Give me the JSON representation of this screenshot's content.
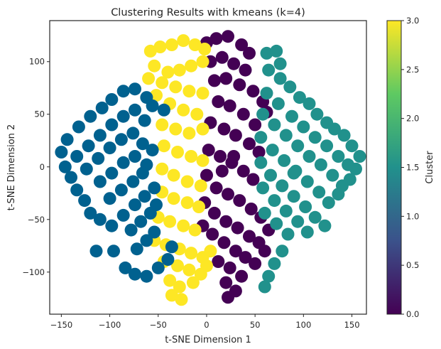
{
  "chart_data": {
    "type": "scatter",
    "title": "Clustering Results with kmeans (k=4)",
    "xlabel": "t-SNE Dimension 1",
    "ylabel": "t-SNE Dimension 2",
    "xlim": [
      -162,
      165
    ],
    "ylim": [
      -140,
      139
    ],
    "xticks": [
      -150,
      -100,
      -50,
      0,
      50,
      100,
      150
    ],
    "xtick_labels": [
      "−150",
      "−100",
      "−50",
      "0",
      "50",
      "100",
      "150"
    ],
    "yticks": [
      -100,
      -50,
      0,
      50,
      100
    ],
    "ytick_labels": [
      "−100",
      "−50",
      "0",
      "50",
      "100"
    ],
    "grid": false,
    "colormap": "viridis",
    "colorbar": {
      "label": "Cluster",
      "range": [
        0.0,
        3.0
      ],
      "ticks": [
        0.0,
        0.5,
        1.0,
        1.5,
        2.0,
        2.5,
        3.0
      ],
      "tick_labels": [
        "0.0",
        "0.5",
        "1.0",
        "1.5",
        "2.0",
        "2.5",
        "3.0"
      ],
      "stops": [
        "#440154",
        "#3b528b",
        "#21918c",
        "#5ec962",
        "#fde725"
      ]
    },
    "series": [
      {
        "cluster": 0,
        "color": "#440154",
        "points": [
          [
            0,
            118
          ],
          [
            10,
            122
          ],
          [
            22,
            124
          ],
          [
            36,
            116
          ],
          [
            44,
            108
          ],
          [
            4,
            100
          ],
          [
            16,
            104
          ],
          [
            28,
            98
          ],
          [
            40,
            92
          ],
          [
            8,
            82
          ],
          [
            20,
            84
          ],
          [
            34,
            78
          ],
          [
            48,
            72
          ],
          [
            58,
            62
          ],
          [
            62,
            52
          ],
          [
            12,
            62
          ],
          [
            24,
            58
          ],
          [
            38,
            50
          ],
          [
            50,
            40
          ],
          [
            4,
            42
          ],
          [
            18,
            36
          ],
          [
            30,
            30
          ],
          [
            44,
            22
          ],
          [
            54,
            14
          ],
          [
            2,
            16
          ],
          [
            14,
            10
          ],
          [
            26,
            4
          ],
          [
            38,
            -4
          ],
          [
            48,
            -12
          ],
          [
            0,
            -8
          ],
          [
            10,
            -20
          ],
          [
            22,
            -26
          ],
          [
            34,
            -32
          ],
          [
            46,
            -40
          ],
          [
            56,
            -48
          ],
          [
            64,
            -60
          ],
          [
            -2,
            -34
          ],
          [
            8,
            -44
          ],
          [
            20,
            -52
          ],
          [
            32,
            -58
          ],
          [
            44,
            -66
          ],
          [
            54,
            -72
          ],
          [
            -4,
            -56
          ],
          [
            6,
            -64
          ],
          [
            18,
            -72
          ],
          [
            30,
            -80
          ],
          [
            40,
            -86
          ],
          [
            50,
            -92
          ],
          [
            12,
            -90
          ],
          [
            24,
            -96
          ],
          [
            36,
            -104
          ],
          [
            20,
            -110
          ],
          [
            30,
            -118
          ],
          [
            22,
            -124
          ],
          [
            60,
            -80
          ],
          [
            28,
            10
          ],
          [
            16,
            -4
          ]
        ]
      },
      {
        "cluster": 1,
        "color": "#21918c",
        "points": [
          [
            62,
            108
          ],
          [
            72,
            110
          ],
          [
            76,
            98
          ],
          [
            64,
            92
          ],
          [
            76,
            84
          ],
          [
            86,
            76
          ],
          [
            96,
            66
          ],
          [
            106,
            60
          ],
          [
            114,
            50
          ],
          [
            124,
            42
          ],
          [
            132,
            36
          ],
          [
            142,
            30
          ],
          [
            150,
            20
          ],
          [
            158,
            10
          ],
          [
            154,
            -2
          ],
          [
            148,
            -12
          ],
          [
            62,
            70
          ],
          [
            74,
            60
          ],
          [
            88,
            48
          ],
          [
            100,
            38
          ],
          [
            112,
            28
          ],
          [
            124,
            20
          ],
          [
            136,
            10
          ],
          [
            146,
            2
          ],
          [
            58,
            50
          ],
          [
            70,
            40
          ],
          [
            82,
            30
          ],
          [
            94,
            20
          ],
          [
            106,
            10
          ],
          [
            118,
            2
          ],
          [
            130,
            -8
          ],
          [
            140,
            -18
          ],
          [
            56,
            28
          ],
          [
            68,
            16
          ],
          [
            80,
            6
          ],
          [
            92,
            -4
          ],
          [
            104,
            -14
          ],
          [
            116,
            -24
          ],
          [
            126,
            -34
          ],
          [
            56,
            4
          ],
          [
            66,
            -8
          ],
          [
            78,
            -18
          ],
          [
            90,
            -28
          ],
          [
            102,
            -38
          ],
          [
            112,
            -48
          ],
          [
            122,
            -56
          ],
          [
            58,
            -20
          ],
          [
            70,
            -32
          ],
          [
            82,
            -42
          ],
          [
            94,
            -52
          ],
          [
            104,
            -62
          ],
          [
            60,
            -44
          ],
          [
            72,
            -54
          ],
          [
            84,
            -64
          ],
          [
            78,
            -80
          ],
          [
            70,
            -92
          ],
          [
            64,
            -104
          ],
          [
            60,
            -114
          ],
          [
            90,
            -6
          ],
          [
            136,
            -26
          ]
        ]
      },
      {
        "cluster": 2,
        "color": "#fde725",
        "points": [
          [
            -58,
            110
          ],
          [
            -48,
            114
          ],
          [
            -36,
            116
          ],
          [
            -24,
            120
          ],
          [
            -12,
            116
          ],
          [
            -2,
            112
          ],
          [
            -4,
            100
          ],
          [
            -16,
            96
          ],
          [
            -28,
            92
          ],
          [
            -40,
            90
          ],
          [
            -54,
            96
          ],
          [
            -60,
            84
          ],
          [
            -46,
            80
          ],
          [
            -32,
            76
          ],
          [
            -18,
            72
          ],
          [
            -4,
            70
          ],
          [
            -52,
            68
          ],
          [
            -38,
            60
          ],
          [
            -24,
            54
          ],
          [
            -10,
            50
          ],
          [
            -4,
            36
          ],
          [
            -18,
            32
          ],
          [
            -32,
            36
          ],
          [
            -46,
            40
          ],
          [
            -44,
            20
          ],
          [
            -30,
            14
          ],
          [
            -16,
            10
          ],
          [
            -4,
            6
          ],
          [
            -46,
            -2
          ],
          [
            -34,
            -8
          ],
          [
            -20,
            -14
          ],
          [
            -6,
            -18
          ],
          [
            -46,
            -24
          ],
          [
            -34,
            -30
          ],
          [
            -20,
            -34
          ],
          [
            -8,
            -38
          ],
          [
            -50,
            -48
          ],
          [
            -38,
            -52
          ],
          [
            -24,
            -56
          ],
          [
            -12,
            -60
          ],
          [
            -54,
            -70
          ],
          [
            -42,
            -74
          ],
          [
            -28,
            -78
          ],
          [
            -16,
            -82
          ],
          [
            -4,
            -86
          ],
          [
            -44,
            -90
          ],
          [
            -30,
            -94
          ],
          [
            -18,
            -98
          ],
          [
            -38,
            -108
          ],
          [
            -28,
            -114
          ],
          [
            -36,
            -122
          ],
          [
            -26,
            -126
          ],
          [
            -14,
            -110
          ],
          [
            -6,
            -102
          ],
          [
            0,
            -94
          ],
          [
            4,
            -80
          ]
        ]
      },
      {
        "cluster": 3,
        "color": "#00618f",
        "points": [
          [
            -150,
            14
          ],
          [
            -146,
            0
          ],
          [
            -140,
            -10
          ],
          [
            -134,
            -22
          ],
          [
            -126,
            -32
          ],
          [
            -144,
            26
          ],
          [
            -132,
            38
          ],
          [
            -120,
            48
          ],
          [
            -108,
            56
          ],
          [
            -98,
            64
          ],
          [
            -86,
            72
          ],
          [
            -74,
            74
          ],
          [
            -62,
            66
          ],
          [
            -134,
            10
          ],
          [
            -122,
            20
          ],
          [
            -110,
            30
          ],
          [
            -98,
            40
          ],
          [
            -86,
            48
          ],
          [
            -74,
            54
          ],
          [
            -64,
            44
          ],
          [
            -124,
            -2
          ],
          [
            -112,
            8
          ],
          [
            -100,
            18
          ],
          [
            -88,
            26
          ],
          [
            -76,
            32
          ],
          [
            -66,
            22
          ],
          [
            -110,
            -14
          ],
          [
            -98,
            -6
          ],
          [
            -86,
            4
          ],
          [
            -74,
            10
          ],
          [
            -62,
            2
          ],
          [
            -56,
            16
          ],
          [
            -120,
            -44
          ],
          [
            -110,
            -50
          ],
          [
            -98,
            -56
          ],
          [
            -86,
            -46
          ],
          [
            -74,
            -36
          ],
          [
            -64,
            -28
          ],
          [
            -54,
            -20
          ],
          [
            -100,
            -30
          ],
          [
            -88,
            -22
          ],
          [
            -76,
            -14
          ],
          [
            -66,
            -6
          ],
          [
            -78,
            -60
          ],
          [
            -68,
            -52
          ],
          [
            -58,
            -44
          ],
          [
            -52,
            -36
          ],
          [
            -72,
            -78
          ],
          [
            -62,
            -70
          ],
          [
            -54,
            -62
          ],
          [
            -84,
            -96
          ],
          [
            -74,
            -102
          ],
          [
            -62,
            -104
          ],
          [
            -50,
            -96
          ],
          [
            -40,
            -88
          ],
          [
            -36,
            -76
          ],
          [
            -96,
            -80
          ],
          [
            -56,
            58
          ],
          [
            -44,
            54
          ],
          [
            -114,
            -80
          ]
        ]
      }
    ]
  }
}
